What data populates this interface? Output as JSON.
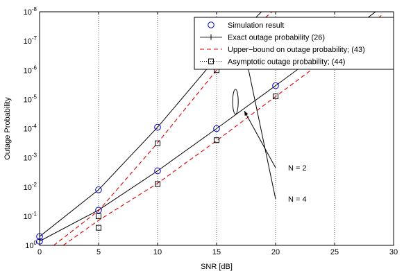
{
  "chart_data": {
    "type": "line",
    "xlabel": "SNR [dB]",
    "ylabel": "Outage Probability",
    "xlim": [
      0,
      30
    ],
    "ylim_exp": [
      -8,
      0
    ],
    "y_scale": "log",
    "grid": true,
    "legend_position": "top-right",
    "x_ticks": [
      "0",
      "5",
      "10",
      "15",
      "20",
      "25",
      "30"
    ],
    "y_tick_exponents": [
      "0",
      "-1",
      "-2",
      "-3",
      "-4",
      "-5",
      "-6",
      "-7",
      "-8"
    ],
    "y_tick_base": "10",
    "legend": [
      {
        "label": "Simulation result",
        "marker": "circle",
        "color": "#0000cc"
      },
      {
        "label": "Exact outage probability (26)",
        "line": "solid",
        "marker": "plus",
        "color": "#000000"
      },
      {
        "label": "Upper−bound on outage probability; (43)",
        "line": "dashed",
        "color": "#dd0000"
      },
      {
        "label": "Asymptotic outage probability; (44)",
        "line": "dotted",
        "marker": "square",
        "color": "#000000"
      }
    ],
    "annotations": [
      {
        "text": "N = 2"
      },
      {
        "text": "N = 4"
      }
    ],
    "series": [
      {
        "group": "N=2",
        "kind": "exact",
        "points": [
          [
            0,
            0.72
          ],
          [
            5,
            0.062
          ],
          [
            10,
            0.0028
          ],
          [
            15,
            0.0001
          ],
          [
            20,
            3.4e-06
          ],
          [
            25,
            1.1e-07
          ],
          [
            30,
            3.5e-09
          ]
        ]
      },
      {
        "group": "N=4",
        "kind": "exact",
        "points": [
          [
            0,
            0.5
          ],
          [
            5,
            0.0125
          ],
          [
            10,
            9e-05
          ],
          [
            15,
            3.7e-07
          ],
          [
            18.8,
            1e-08
          ]
        ]
      },
      {
        "group": "N=2",
        "kind": "upper_bound",
        "points": [
          [
            2,
            1.0
          ],
          [
            5,
            0.14
          ],
          [
            10,
            0.0075
          ],
          [
            15,
            0.00026
          ],
          [
            20,
            8e-06
          ],
          [
            25,
            2.5e-07
          ],
          [
            29,
            1.3e-08
          ]
        ]
      },
      {
        "group": "N=4",
        "kind": "upper_bound",
        "points": [
          [
            1.2,
            1.0
          ],
          [
            5,
            0.065
          ],
          [
            10,
            0.00031
          ],
          [
            15,
            1e-06
          ],
          [
            17.6,
            5.5e-08
          ],
          [
            19.7,
            1e-08
          ]
        ]
      },
      {
        "group": "N=2",
        "kind": "simulation",
        "points": [
          [
            0,
            0.72
          ],
          [
            5,
            0.062
          ],
          [
            10,
            0.0028
          ],
          [
            15,
            0.0001
          ],
          [
            20,
            3.4e-06
          ],
          [
            25,
            1.1e-07
          ]
        ]
      },
      {
        "group": "N=4",
        "kind": "simulation",
        "points": [
          [
            0,
            0.5
          ],
          [
            5,
            0.0125
          ],
          [
            10,
            9e-05
          ],
          [
            15,
            3.7e-07
          ]
        ]
      },
      {
        "group": "N=2",
        "kind": "asymptotic",
        "points": [
          [
            5,
            0.25
          ],
          [
            10,
            0.0079
          ],
          [
            15,
            0.00025
          ],
          [
            20,
            7.9e-06
          ],
          [
            25,
            2.5e-07
          ]
        ]
      },
      {
        "group": "N=4",
        "kind": "asymptotic",
        "points": [
          [
            5,
            0.1
          ],
          [
            10,
            0.00032
          ],
          [
            15,
            1e-06
          ]
        ]
      }
    ]
  }
}
